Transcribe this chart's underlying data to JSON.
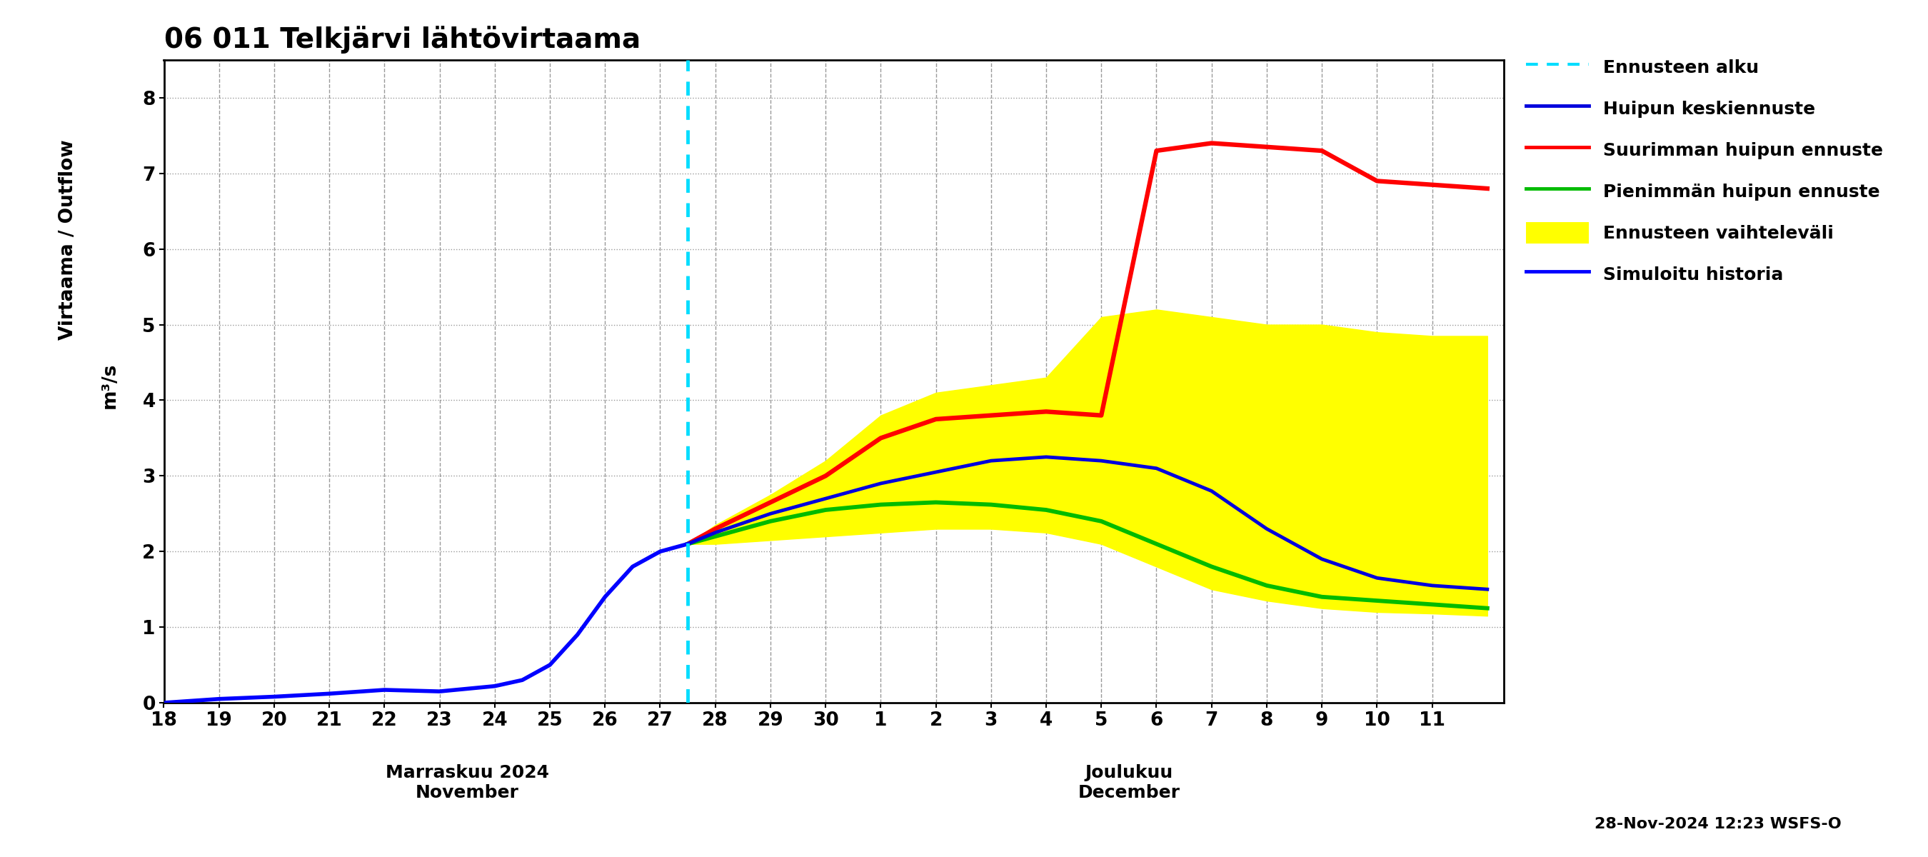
{
  "title": "06 011 Telkjärvi lähtövirtaama",
  "ylabel_top": "Virtaama / Outflow",
  "ylabel_bottom": "m³/s",
  "footer": "28-Nov-2024 12:23 WSFS-O",
  "ylim": [
    0,
    8.5
  ],
  "yticks": [
    0,
    1,
    2,
    3,
    4,
    5,
    6,
    7,
    8
  ],
  "background_color": "#ffffff",
  "grid_color": "#999999",
  "forecast_line_x": 27.5,
  "nov_ticks": [
    18,
    19,
    20,
    21,
    22,
    23,
    24,
    25,
    26,
    27,
    28,
    29,
    30
  ],
  "dec_ticks": [
    1,
    2,
    3,
    4,
    5,
    6,
    7,
    8,
    9,
    10,
    11
  ],
  "xmin": 18,
  "xmax": 42.3,
  "history_x": [
    18,
    19,
    20,
    21,
    22,
    23,
    24,
    24.5,
    25,
    25.5,
    26,
    26.5,
    27,
    27.5
  ],
  "history_y": [
    0.0,
    0.05,
    0.08,
    0.12,
    0.17,
    0.15,
    0.22,
    0.3,
    0.5,
    0.9,
    1.4,
    1.8,
    2.0,
    2.1
  ],
  "mean_x": [
    27.5,
    28,
    29,
    30,
    31,
    32,
    33,
    34,
    35,
    36,
    37,
    38,
    39,
    40,
    41,
    42
  ],
  "mean_y": [
    2.1,
    2.25,
    2.5,
    2.7,
    2.9,
    3.05,
    3.2,
    3.25,
    3.2,
    3.1,
    2.8,
    2.3,
    1.9,
    1.65,
    1.55,
    1.5
  ],
  "max_x": [
    27.5,
    28,
    29,
    30,
    31,
    32,
    33,
    34,
    35,
    36,
    37,
    38,
    39,
    40,
    41,
    42
  ],
  "max_y": [
    2.1,
    2.3,
    2.65,
    3.0,
    3.5,
    3.75,
    3.8,
    3.85,
    3.8,
    7.3,
    7.4,
    7.35,
    7.3,
    6.9,
    6.85,
    6.8
  ],
  "min_x": [
    27.5,
    28,
    29,
    30,
    31,
    32,
    33,
    34,
    35,
    36,
    37,
    38,
    39,
    40,
    41,
    42
  ],
  "min_y": [
    2.1,
    2.2,
    2.4,
    2.55,
    2.62,
    2.65,
    2.62,
    2.55,
    2.4,
    2.1,
    1.8,
    1.55,
    1.4,
    1.35,
    1.3,
    1.25
  ],
  "band_upper_x": [
    27.5,
    28,
    29,
    30,
    31,
    32,
    33,
    34,
    35,
    36,
    37,
    38,
    39,
    40,
    41,
    42
  ],
  "band_upper_y": [
    2.1,
    2.35,
    2.75,
    3.2,
    3.8,
    4.1,
    4.2,
    4.3,
    5.1,
    5.2,
    5.1,
    5.0,
    5.0,
    4.9,
    4.85,
    4.85
  ],
  "band_lower_y": [
    2.1,
    2.1,
    2.15,
    2.2,
    2.25,
    2.3,
    2.3,
    2.25,
    2.1,
    1.8,
    1.5,
    1.35,
    1.25,
    1.2,
    1.18,
    1.15
  ],
  "color_history": "#0000ff",
  "color_mean": "#0000dd",
  "color_max": "#ff0000",
  "color_min": "#00bb00",
  "color_band": "#ffff00",
  "color_forecast_line": "#00ddff",
  "lw_lines": 3.5,
  "lw_history": 4.0,
  "legend_items": [
    "Ennusteen alku",
    "Huipun keskiennuste",
    "Suurimman huipun ennuste",
    "Pienimmän huipun ennuste",
    "Ennusteen vaihteleväli",
    "Simuloitu historia"
  ]
}
